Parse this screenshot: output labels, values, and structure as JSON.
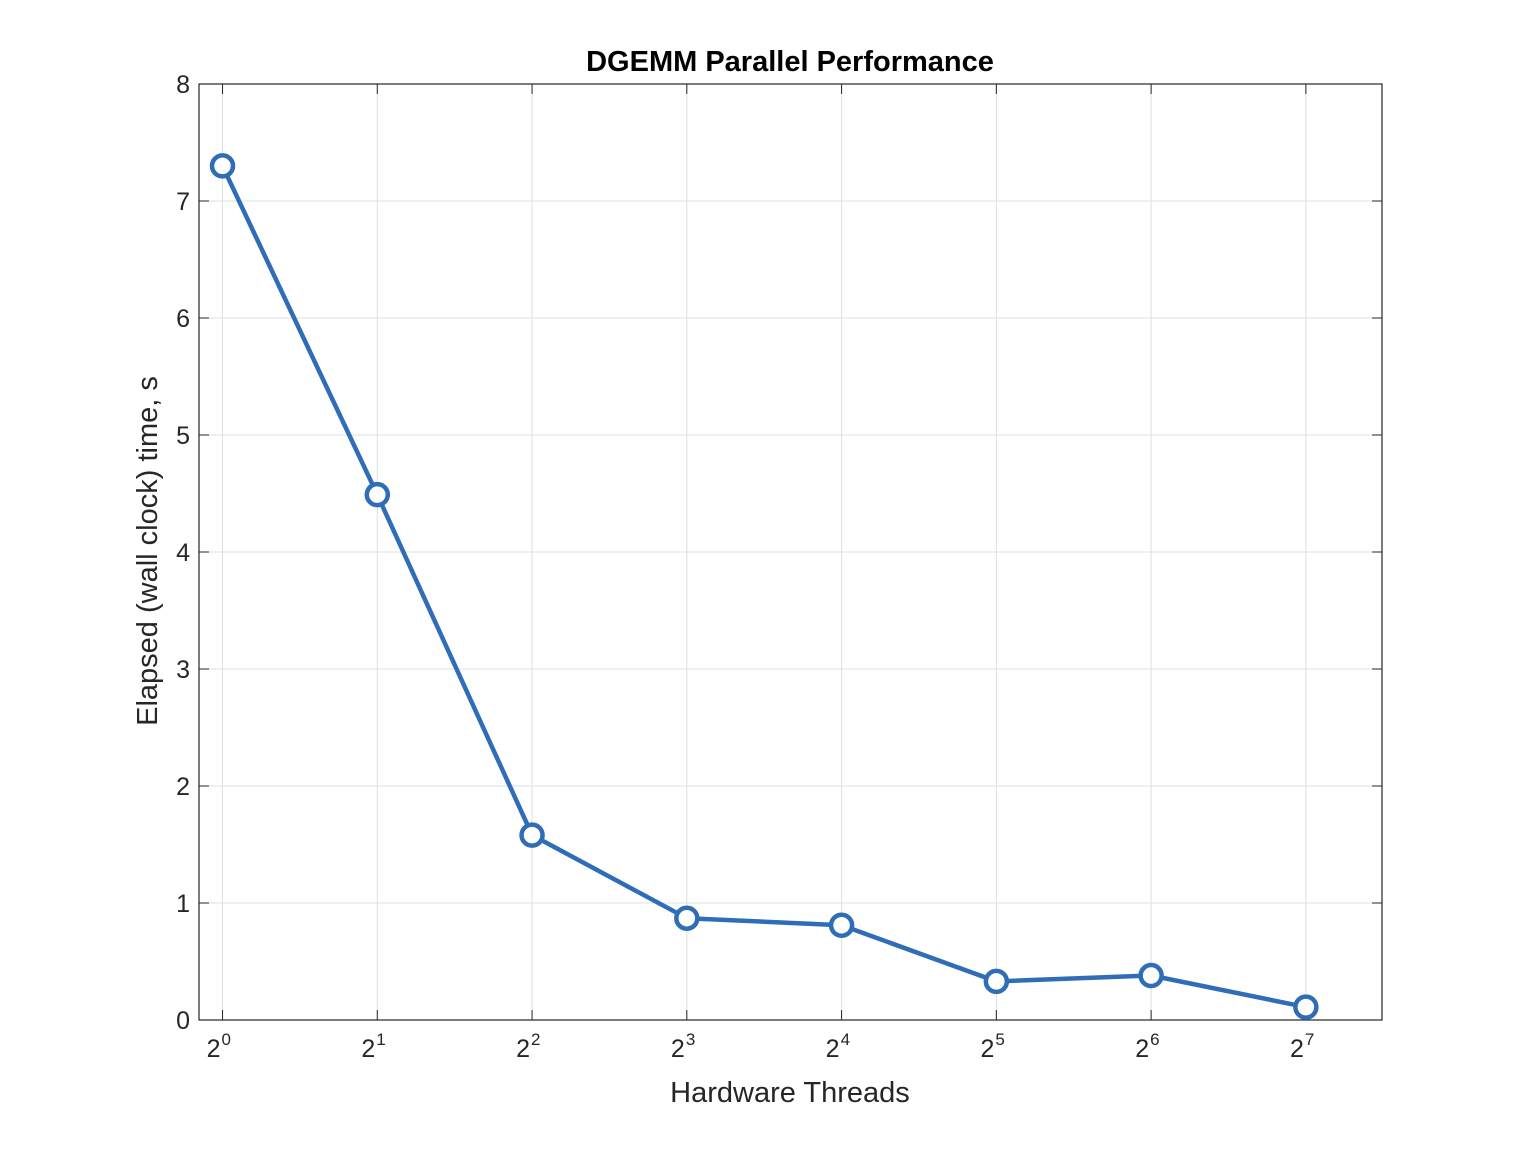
{
  "chart_data": {
    "type": "line",
    "title": "DGEMM Parallel Performance",
    "xlabel": "Hardware Threads",
    "ylabel": "Elapsed (wall clock) time, s",
    "x_scale": "log2",
    "xlim": [
      0.9,
      180
    ],
    "ylim": [
      0,
      8
    ],
    "grid": true,
    "legend": "none",
    "x_ticks": [
      {
        "base": "2",
        "exp": "0",
        "value": 1
      },
      {
        "base": "2",
        "exp": "1",
        "value": 2
      },
      {
        "base": "2",
        "exp": "2",
        "value": 4
      },
      {
        "base": "2",
        "exp": "3",
        "value": 8
      },
      {
        "base": "2",
        "exp": "4",
        "value": 16
      },
      {
        "base": "2",
        "exp": "5",
        "value": 32
      },
      {
        "base": "2",
        "exp": "6",
        "value": 64
      },
      {
        "base": "2",
        "exp": "7",
        "value": 128
      }
    ],
    "y_ticks": [
      "0",
      "1",
      "2",
      "3",
      "4",
      "5",
      "6",
      "7",
      "8"
    ],
    "series": [
      {
        "color": "#2f6db6",
        "marker": "circle",
        "points": [
          {
            "x": 1,
            "y": 7.3
          },
          {
            "x": 2,
            "y": 4.49
          },
          {
            "x": 4,
            "y": 1.58
          },
          {
            "x": 8,
            "y": 0.87
          },
          {
            "x": 16,
            "y": 0.81
          },
          {
            "x": 32,
            "y": 0.33
          },
          {
            "x": 64,
            "y": 0.38
          },
          {
            "x": 128,
            "y": 0.11
          }
        ]
      }
    ]
  }
}
